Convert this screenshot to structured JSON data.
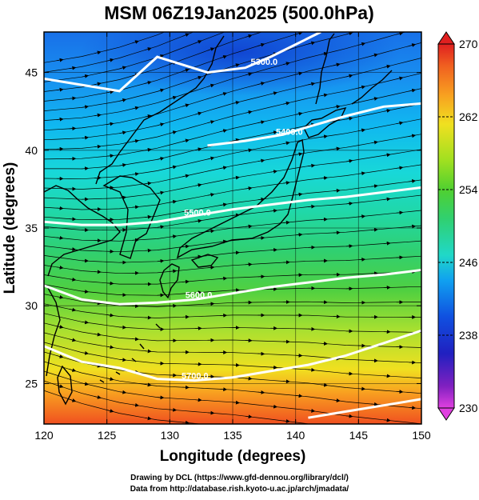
{
  "title": "MSM 06Z19Jan2025 (500.0hPa)",
  "xlabel": "Longitude (degrees)",
  "ylabel": "Latitude  (degrees)",
  "credits": {
    "line1": "Drawing by DCL (https://www.gfd-dennou.org/library/dcl/)",
    "line2": "Data from http://database.rish.kyoto-u.ac.jp/arch/jmadata/"
  },
  "chart_data": {
    "type": "heatmap",
    "title": "MSM 06Z19Jan2025 (500.0hPa)",
    "xlabel": "Longitude (degrees)",
    "ylabel": "Latitude  (degrees)",
    "xlim": [
      120,
      150
    ],
    "ylim": [
      22.4,
      47.6
    ],
    "x_ticks": [
      120,
      125,
      130,
      135,
      140,
      145,
      150
    ],
    "y_ticks": [
      25,
      30,
      35,
      40,
      45
    ],
    "grid": true,
    "colorbar": {
      "min": 230,
      "max": 270,
      "tick_values": [
        230,
        238,
        246,
        254,
        262,
        270
      ],
      "tick_labels": [
        "230",
        "238",
        "246",
        "254",
        "262",
        "270"
      ]
    },
    "contours": [
      {
        "label": "5300.0",
        "label_lon": 137.5,
        "label_lat": 45.5,
        "points": [
          [
            120,
            44.6
          ],
          [
            123,
            44.2
          ],
          [
            126,
            43.8
          ],
          [
            129,
            46.0
          ],
          [
            131,
            45.5
          ],
          [
            133,
            45.0
          ],
          [
            136,
            45.3
          ],
          [
            138,
            46.0
          ],
          [
            140,
            46.8
          ],
          [
            142,
            47.6
          ]
        ]
      },
      {
        "label": "5400.0",
        "label_lon": 139.5,
        "label_lat": 41.0,
        "points": [
          [
            133,
            40.3
          ],
          [
            136,
            40.6
          ],
          [
            139,
            41.0
          ],
          [
            141,
            41.5
          ],
          [
            144,
            42.2
          ],
          [
            147,
            42.8
          ],
          [
            150,
            43.0
          ]
        ]
      },
      {
        "label": "5500.0",
        "label_lon": 132.2,
        "label_lat": 35.8,
        "points": [
          [
            120,
            35.4
          ],
          [
            123,
            35.2
          ],
          [
            126,
            35.2
          ],
          [
            129,
            35.4
          ],
          [
            132,
            35.8
          ],
          [
            135,
            36.2
          ],
          [
            138,
            36.5
          ],
          [
            141,
            36.8
          ],
          [
            144,
            37.0
          ],
          [
            147,
            37.3
          ],
          [
            150,
            37.6
          ]
        ]
      },
      {
        "label": "5600.0",
        "label_lon": 132.3,
        "label_lat": 30.5,
        "points": [
          [
            120,
            31.3
          ],
          [
            123,
            30.4
          ],
          [
            126,
            30.1
          ],
          [
            129,
            30.2
          ],
          [
            132,
            30.4
          ],
          [
            135,
            30.8
          ],
          [
            138,
            31.2
          ],
          [
            141,
            31.5
          ],
          [
            144,
            31.8
          ],
          [
            147,
            32.0
          ],
          [
            150,
            32.3
          ]
        ]
      },
      {
        "label": "5700.0",
        "label_lon": 132.0,
        "label_lat": 25.3,
        "points": [
          [
            120,
            27.4
          ],
          [
            123,
            26.4
          ],
          [
            126,
            26.0
          ],
          [
            129,
            25.3
          ],
          [
            132,
            25.2
          ],
          [
            135,
            25.4
          ],
          [
            138,
            25.8
          ],
          [
            141,
            26.2
          ],
          [
            144,
            26.8
          ],
          [
            147,
            27.6
          ],
          [
            150,
            28.4
          ]
        ]
      },
      {
        "label": "",
        "label_lon": 0,
        "label_lat": 0,
        "points": [
          [
            141,
            22.8
          ],
          [
            144,
            23.2
          ],
          [
            147,
            23.6
          ],
          [
            150,
            24.0
          ]
        ]
      }
    ]
  }
}
